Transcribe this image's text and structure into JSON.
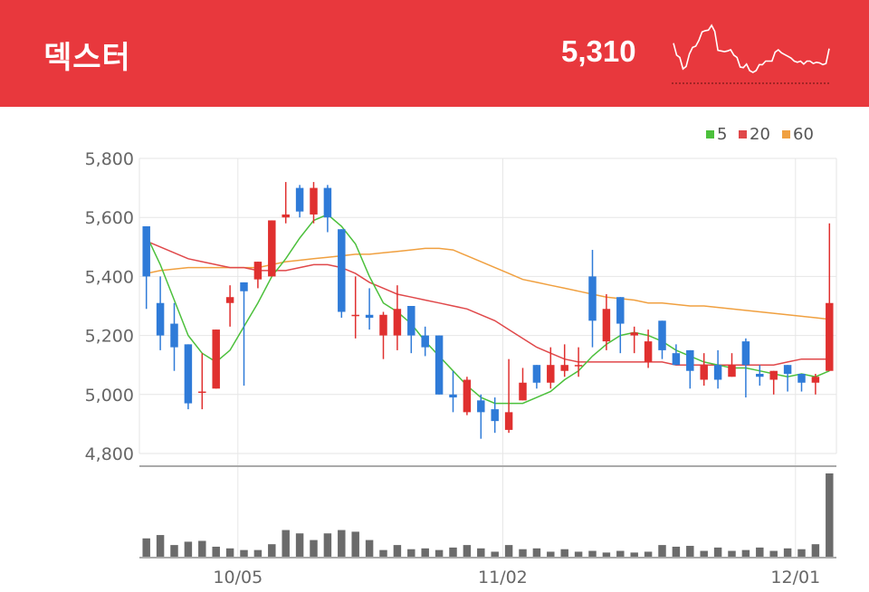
{
  "header": {
    "name": "덱스터",
    "price": "5,310",
    "colors": {
      "background": "#e8383d",
      "text": "#ffffff"
    }
  },
  "legend": [
    {
      "label": "5",
      "color": "#4cc03c"
    },
    {
      "label": "20",
      "color": "#e0484a"
    },
    {
      "label": "60",
      "color": "#f0a040"
    }
  ],
  "chart_data": {
    "type": "candlestick",
    "ylim": [
      4800,
      5800
    ],
    "yticks": [
      "5,800",
      "5,600",
      "5,400",
      "5,200",
      "5,000",
      "4,800"
    ],
    "ytick_values": [
      5800,
      5600,
      5400,
      5200,
      5000,
      4800
    ],
    "xticks": [
      {
        "label": "10/05",
        "index": 7
      },
      {
        "label": "11/02",
        "index": 26
      },
      {
        "label": "12/01",
        "index": 47
      }
    ],
    "colors": {
      "up": "#e0302f",
      "down": "#2f7bd8",
      "ma5": "#4cc03c",
      "ma20": "#e0484a",
      "ma60": "#f0a040",
      "volume": "#6b6b6b"
    },
    "candles": [
      [
        5570,
        5570,
        5290,
        5400
      ],
      [
        5310,
        5400,
        5150,
        5200
      ],
      [
        5240,
        5310,
        5080,
        5160
      ],
      [
        5170,
        5170,
        4950,
        4970
      ],
      [
        5010,
        5140,
        4950,
        5010
      ],
      [
        5020,
        5220,
        5020,
        5220
      ],
      [
        5310,
        5370,
        5230,
        5330
      ],
      [
        5380,
        5380,
        5030,
        5350
      ],
      [
        5390,
        5450,
        5360,
        5450
      ],
      [
        5400,
        5590,
        5400,
        5590
      ],
      [
        5600,
        5720,
        5580,
        5610
      ],
      [
        5700,
        5710,
        5600,
        5620
      ],
      [
        5610,
        5720,
        5580,
        5700
      ],
      [
        5700,
        5710,
        5550,
        5600
      ],
      [
        5560,
        5560,
        5260,
        5280
      ],
      [
        5270,
        5400,
        5190,
        5270
      ],
      [
        5270,
        5360,
        5220,
        5260
      ],
      [
        5200,
        5280,
        5120,
        5270
      ],
      [
        5200,
        5370,
        5150,
        5290
      ],
      [
        5300,
        5300,
        5140,
        5200
      ],
      [
        5200,
        5230,
        5130,
        5160
      ],
      [
        5200,
        5200,
        5000,
        5000
      ],
      [
        5000,
        5080,
        4940,
        4990
      ],
      [
        4940,
        5060,
        4930,
        5050
      ],
      [
        4980,
        5000,
        4850,
        4940
      ],
      [
        4950,
        4990,
        4870,
        4910
      ],
      [
        4880,
        5120,
        4870,
        4940
      ],
      [
        4980,
        5090,
        4980,
        5040
      ],
      [
        5100,
        5100,
        5020,
        5040
      ],
      [
        5040,
        5160,
        5020,
        5100
      ],
      [
        5080,
        5170,
        5060,
        5100
      ],
      [
        5100,
        5160,
        5060,
        5100
      ],
      [
        5400,
        5490,
        5160,
        5250
      ],
      [
        5180,
        5340,
        5150,
        5290
      ],
      [
        5330,
        5330,
        5140,
        5240
      ],
      [
        5200,
        5230,
        5140,
        5210
      ],
      [
        5110,
        5220,
        5090,
        5180
      ],
      [
        5250,
        5250,
        5120,
        5150
      ],
      [
        5140,
        5170,
        5100,
        5100
      ],
      [
        5150,
        5150,
        5020,
        5080
      ],
      [
        5050,
        5140,
        5030,
        5100
      ],
      [
        5100,
        5150,
        5020,
        5050
      ],
      [
        5060,
        5140,
        5060,
        5100
      ],
      [
        5180,
        5190,
        4990,
        5100
      ],
      [
        5070,
        5100,
        5030,
        5060
      ],
      [
        5050,
        5080,
        5000,
        5080
      ],
      [
        5100,
        5100,
        5010,
        5070
      ],
      [
        5070,
        5070,
        5010,
        5040
      ],
      [
        5040,
        5070,
        5000,
        5060
      ],
      [
        5080,
        5580,
        5080,
        5310
      ]
    ],
    "ma5": [
      5540,
      5440,
      5320,
      5200,
      5140,
      5110,
      5150,
      5230,
      5310,
      5400,
      5460,
      5530,
      5590,
      5610,
      5570,
      5510,
      5400,
      5310,
      5280,
      5240,
      5180,
      5130,
      5080,
      5030,
      4990,
      4970,
      4970,
      4970,
      4990,
      5010,
      5050,
      5080,
      5130,
      5170,
      5200,
      5210,
      5200,
      5180,
      5150,
      5130,
      5110,
      5100,
      5090,
      5090,
      5080,
      5070,
      5060,
      5070,
      5060,
      5080
    ],
    "ma20": [
      5520,
      5500,
      5480,
      5460,
      5450,
      5440,
      5430,
      5430,
      5420,
      5420,
      5420,
      5430,
      5440,
      5440,
      5430,
      5410,
      5380,
      5360,
      5340,
      5330,
      5320,
      5310,
      5300,
      5290,
      5270,
      5250,
      5220,
      5190,
      5160,
      5140,
      5120,
      5110,
      5110,
      5110,
      5110,
      5110,
      5110,
      5110,
      5100,
      5100,
      5100,
      5100,
      5100,
      5100,
      5100,
      5100,
      5110,
      5120,
      5120,
      5120
    ],
    "ma60": [
      5410,
      5420,
      5425,
      5430,
      5430,
      5430,
      5430,
      5430,
      5430,
      5440,
      5450,
      5455,
      5460,
      5465,
      5470,
      5475,
      5475,
      5480,
      5485,
      5490,
      5495,
      5495,
      5490,
      5470,
      5450,
      5430,
      5410,
      5390,
      5380,
      5370,
      5360,
      5350,
      5340,
      5330,
      5325,
      5320,
      5310,
      5310,
      5305,
      5300,
      5300,
      5295,
      5290,
      5285,
      5280,
      5275,
      5270,
      5265,
      5260,
      5255
    ],
    "volume": [
      0.22,
      0.26,
      0.14,
      0.18,
      0.19,
      0.12,
      0.1,
      0.08,
      0.08,
      0.15,
      0.32,
      0.28,
      0.2,
      0.28,
      0.32,
      0.3,
      0.2,
      0.08,
      0.14,
      0.09,
      0.1,
      0.08,
      0.11,
      0.14,
      0.1,
      0.06,
      0.14,
      0.09,
      0.1,
      0.06,
      0.09,
      0.06,
      0.07,
      0.05,
      0.07,
      0.05,
      0.06,
      0.14,
      0.12,
      0.13,
      0.07,
      0.11,
      0.07,
      0.08,
      0.11,
      0.07,
      0.1,
      0.09,
      0.15,
      1.0
    ]
  }
}
